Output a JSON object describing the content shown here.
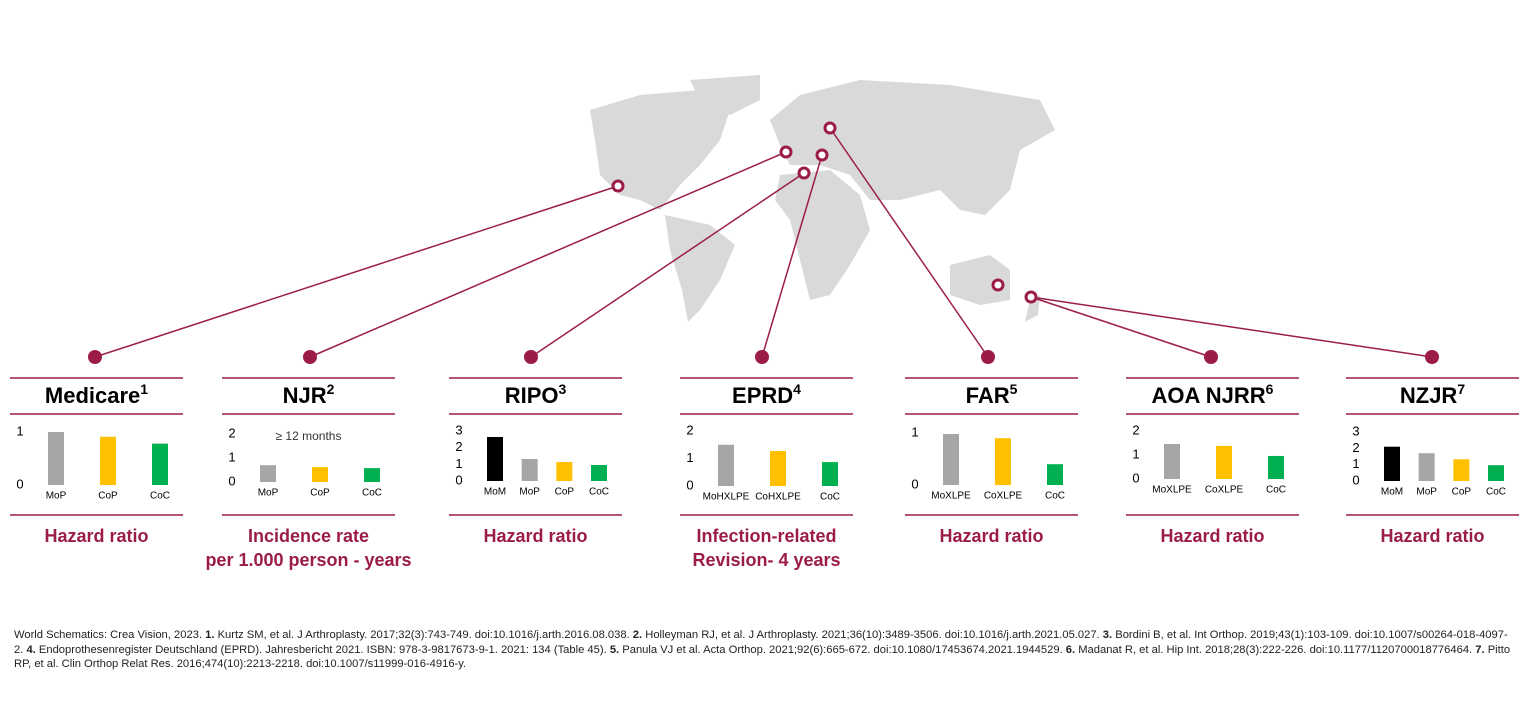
{
  "chart_data": [
    {
      "type": "bar",
      "title": "Medicare",
      "title_ref": "1",
      "caption": [
        "Hazard ratio"
      ],
      "categories": [
        "MoP",
        "CoP",
        "CoC"
      ],
      "values": [
        1.0,
        0.91,
        0.78
      ],
      "colors": [
        "#a6a6a6",
        "#ffc000",
        "#00b050"
      ],
      "ylim": [
        0,
        1
      ],
      "yticks": [
        0,
        1
      ]
    },
    {
      "type": "bar",
      "title": "NJR",
      "title_ref": "2",
      "caption": [
        "Incidence rate",
        "per 1.000 person - years"
      ],
      "note": "≥ 12 months",
      "categories": [
        "MoP",
        "CoP",
        "CoC"
      ],
      "values": [
        0.7,
        0.62,
        0.58
      ],
      "colors": [
        "#a6a6a6",
        "#ffc000",
        "#00b050"
      ],
      "ylim": [
        0,
        2
      ],
      "yticks": [
        0,
        1,
        2
      ]
    },
    {
      "type": "bar",
      "title": "RIPO",
      "title_ref": "3",
      "caption": [
        "Hazard ratio"
      ],
      "categories": [
        "MoM",
        "MoP",
        "CoP",
        "CoC"
      ],
      "values": [
        2.64,
        1.32,
        1.14,
        0.96
      ],
      "colors": [
        "#000000",
        "#a6a6a6",
        "#ffc000",
        "#00b050"
      ],
      "ylim": [
        0,
        3
      ],
      "yticks": [
        0,
        1,
        2,
        3
      ]
    },
    {
      "type": "bar",
      "title": "EPRD",
      "title_ref": "4",
      "caption": [
        "Infection-related",
        "Revision- 4 years"
      ],
      "categories": [
        "MoHXLPE",
        "CoHXLPE",
        "CoC"
      ],
      "values": [
        1.5,
        1.27,
        0.87
      ],
      "colors": [
        "#a6a6a6",
        "#ffc000",
        "#00b050"
      ],
      "ylim": [
        0,
        2
      ],
      "yticks": [
        0,
        1,
        2
      ]
    },
    {
      "type": "bar",
      "title": "FAR",
      "title_ref": "5",
      "caption": [
        "Hazard ratio"
      ],
      "categories": [
        "MoXLPE",
        "CoXLPE",
        "CoC"
      ],
      "values": [
        0.98,
        0.9,
        0.4
      ],
      "colors": [
        "#a6a6a6",
        "#ffc000",
        "#00b050"
      ],
      "ylim": [
        0,
        1
      ],
      "yticks": [
        0,
        1
      ]
    },
    {
      "type": "bar",
      "title": "AOA NJRR",
      "title_ref": "6",
      "caption": [
        "Hazard ratio"
      ],
      "categories": [
        "MoXLPE",
        "CoXLPE",
        "CoC"
      ],
      "values": [
        1.46,
        1.38,
        0.96
      ],
      "colors": [
        "#a6a6a6",
        "#ffc000",
        "#00b050"
      ],
      "ylim": [
        0,
        2
      ],
      "yticks": [
        0,
        1,
        2
      ]
    },
    {
      "type": "bar",
      "title": "NZJR",
      "title_ref": "7",
      "caption": [
        "Hazard ratio"
      ],
      "categories": [
        "MoM",
        "MoP",
        "CoP",
        "CoC"
      ],
      "values": [
        2.1,
        1.7,
        1.33,
        0.97
      ],
      "colors": [
        "#000000",
        "#a6a6a6",
        "#ffc000",
        "#00b050"
      ],
      "ylim": [
        0,
        3
      ],
      "yticks": [
        0,
        1,
        2,
        3
      ]
    }
  ],
  "footnote": {
    "source": "World Schematics: Crea Vision, 2023.",
    "references": [
      {
        "number": "1.",
        "text": "Kurtz SM, et al. J Arthroplasty. 2017;32(3):743-749. doi:10.1016/j.arth.2016.08.038."
      },
      {
        "number": "2.",
        "text": "Holleyman RJ, et al. J Arthroplasty. 2021;36(10):3489-3506. doi:10.1016/j.arth.2021.05.027."
      },
      {
        "number": "3.",
        "text": "Bordini B, et al. Int Orthop. 2019;43(1):103-109. doi:10.1007/s00264-018-4097-2."
      },
      {
        "number": "4.",
        "text": "Endoprothesenregister Deutschland (EPRD). Jahresbericht 2021. ISBN: 978-3-9817673-9-1. 2021: 134 (Table 45)."
      },
      {
        "number": "5.",
        "text": "Panula VJ et al. Acta Orthop. 2021;92(6):665-672. doi:10.1080/17453674.2021.1944529."
      },
      {
        "number": "6.",
        "text": "Madanat R, et al. Hip Int. 2018;28(3):222-226. doi:10.1177/1120700018776464."
      },
      {
        "number": "7.",
        "text": "Pitto RP, et al. Clin Orthop Relat Res. 2016;474(10):2213-2218. doi:10.1007/s11999-016-4916-y."
      }
    ]
  }
}
